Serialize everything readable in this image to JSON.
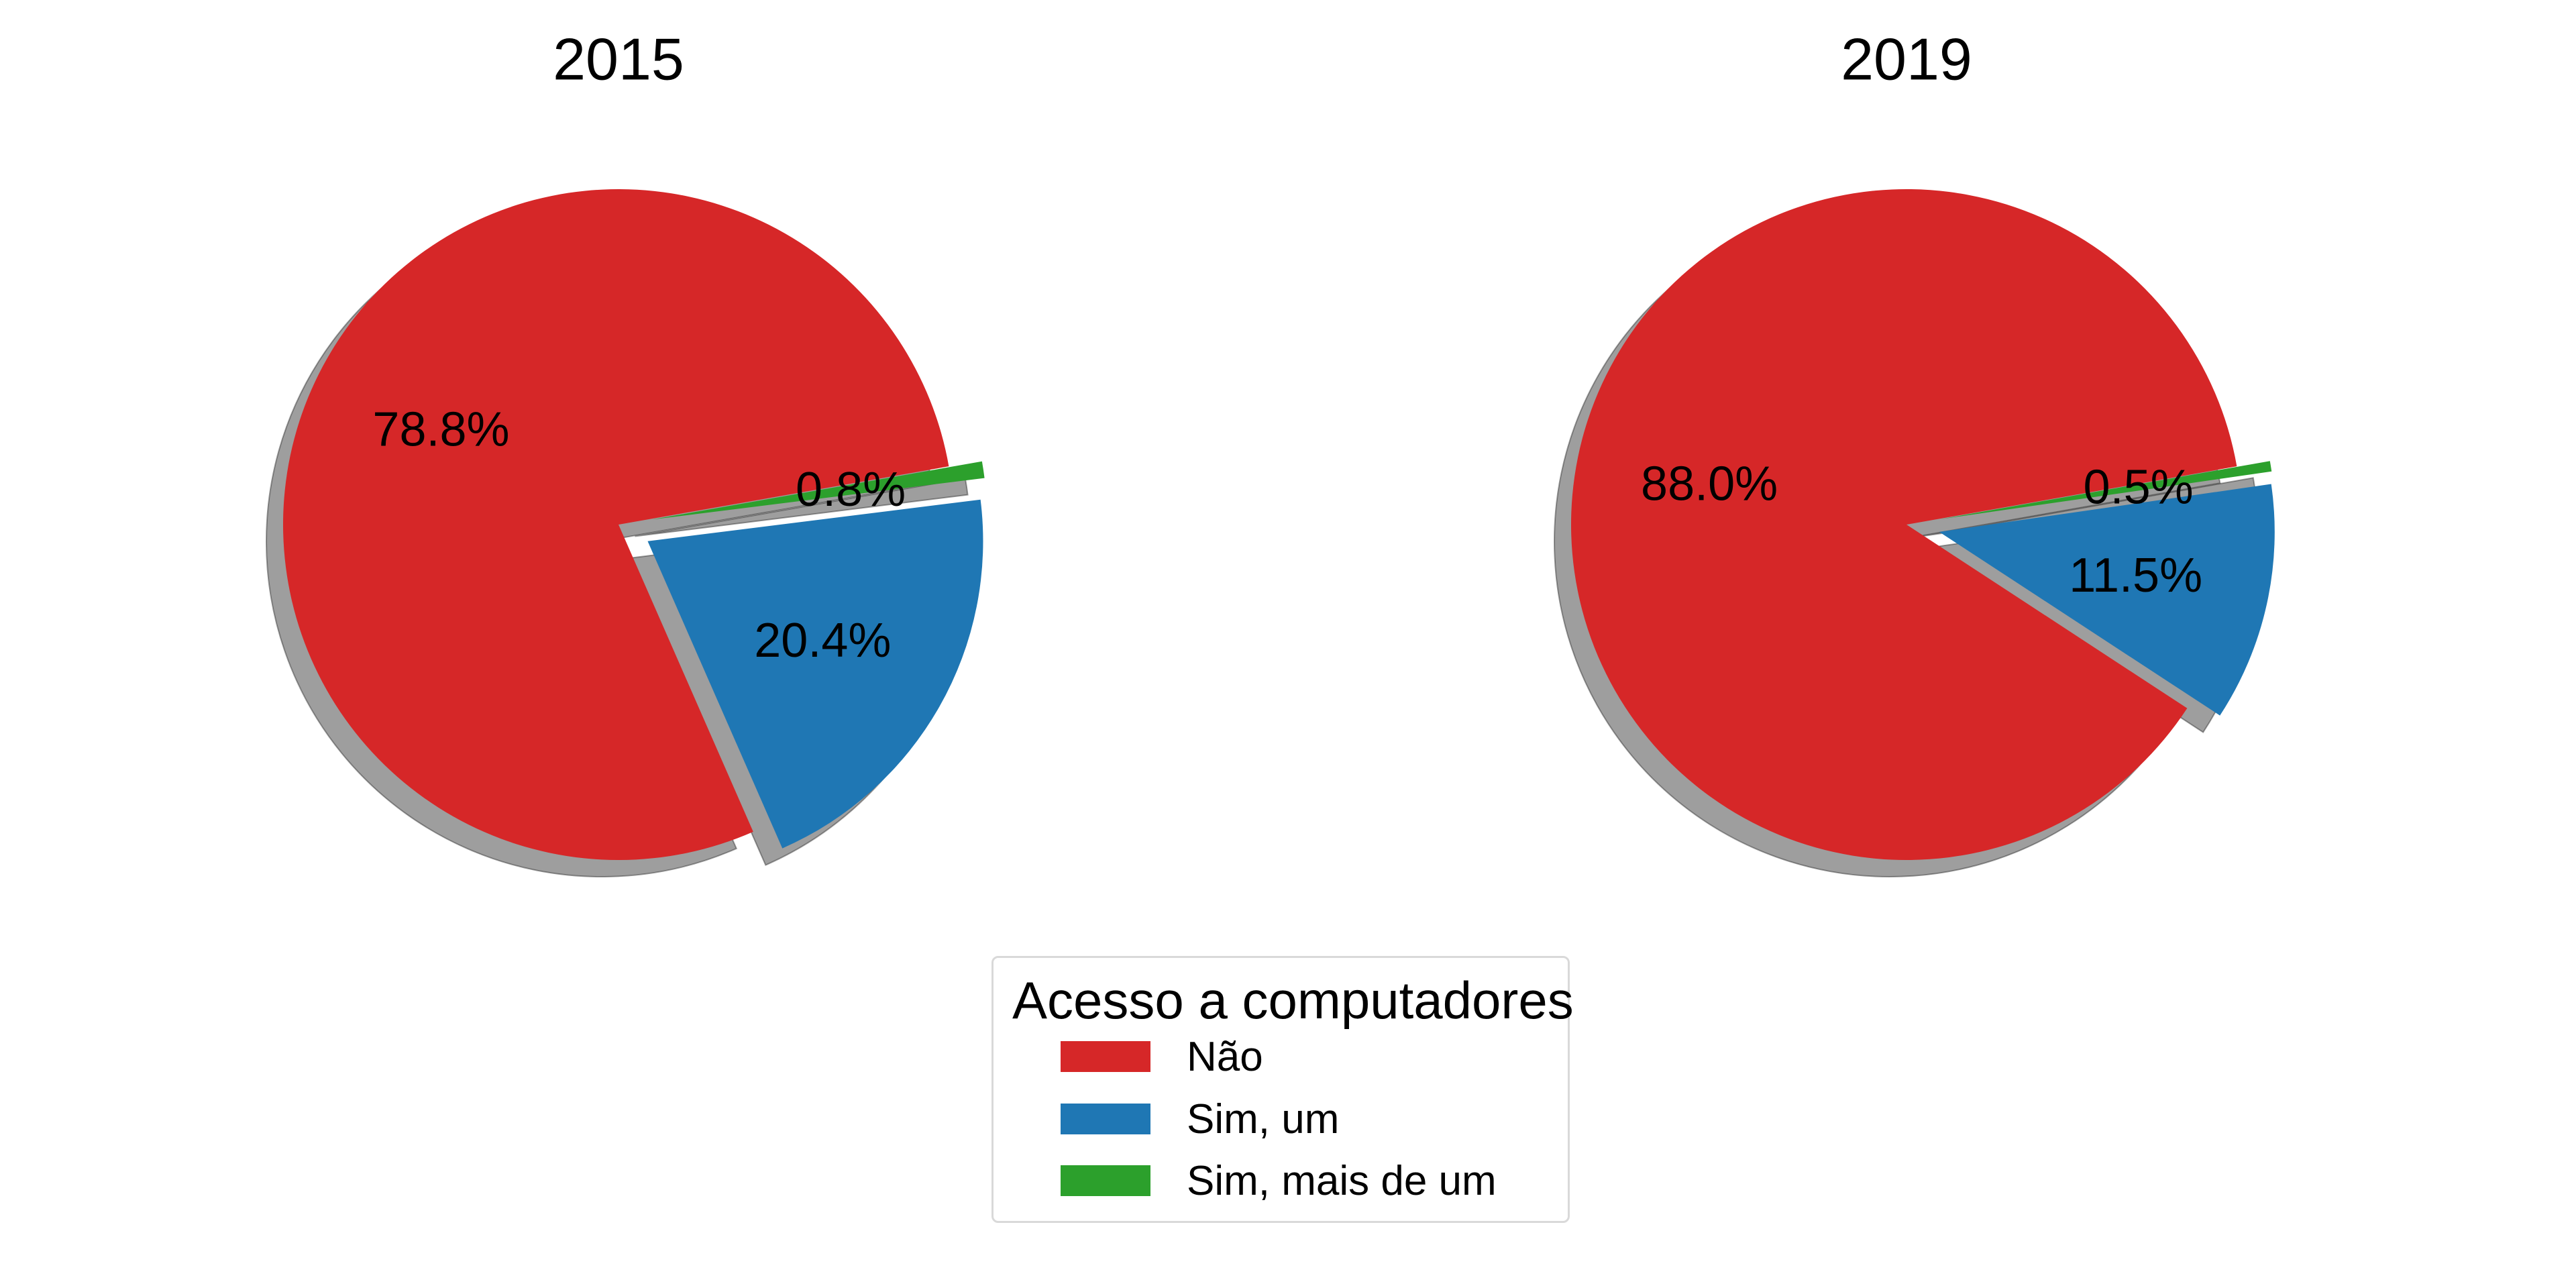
{
  "chart_data": [
    {
      "type": "pie",
      "title": "2015",
      "categories": [
        "Não",
        "Sim, um",
        "Sim, mais de um"
      ],
      "values": [
        78.8,
        20.4,
        0.8
      ],
      "labels": [
        "78.8%",
        "20.4%",
        "0.8%"
      ],
      "exploded": [
        false,
        true,
        true
      ],
      "shadow": true
    },
    {
      "type": "pie",
      "title": "2019",
      "categories": [
        "Não",
        "Sim, um",
        "Sim, mais de um"
      ],
      "values": [
        88.0,
        11.5,
        0.5
      ],
      "labels": [
        "88.0%",
        "11.5%",
        "0.5%"
      ],
      "exploded": [
        false,
        true,
        true
      ],
      "shadow": true
    }
  ],
  "legend": {
    "title": "Acesso a computadores",
    "placement": "bottom-center",
    "items": [
      {
        "label": "Não",
        "color": "#d62728"
      },
      {
        "label": "Sim, um",
        "color": "#1f77b4"
      },
      {
        "label": "Sim, mais de um",
        "color": "#2ca02c"
      }
    ]
  },
  "colors": [
    "#d62728",
    "#1f77b4",
    "#2ca02c"
  ]
}
